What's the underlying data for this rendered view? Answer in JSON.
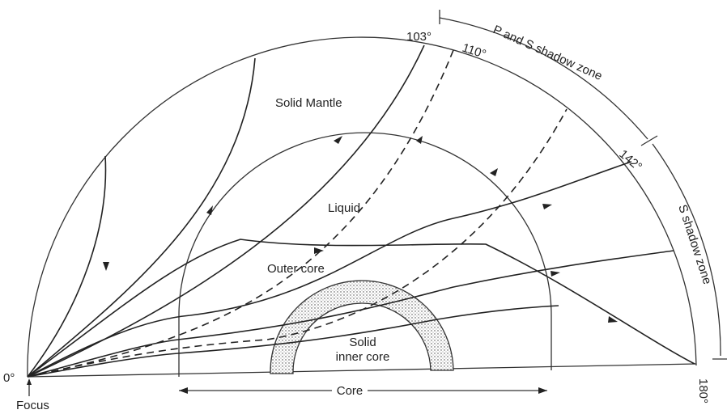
{
  "labels": {
    "focus_angle": "0°",
    "focus": "Focus",
    "angle_103": "103°",
    "angle_110": "110°",
    "angle_142": "142°",
    "angle_180": "180°",
    "ps_shadow": "P and S shadow zone",
    "s_shadow": "S shadow zone",
    "mantle": "Solid Mantle",
    "liquid": "Liquid",
    "outer_core": "Outer core",
    "inner_core_1": "Solid",
    "inner_core_2": "inner core",
    "core": "Core"
  }
}
